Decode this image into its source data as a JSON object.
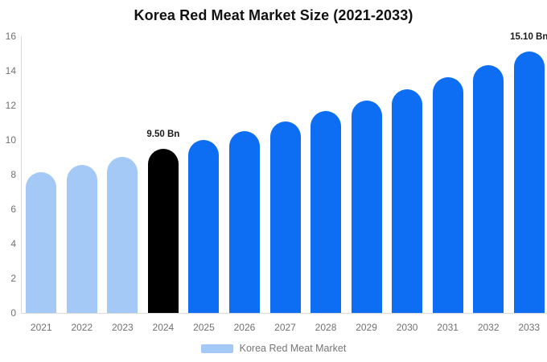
{
  "title": "Korea Red Meat Market Size (2021-2033)",
  "legend": {
    "label": "Korea Red Meat Market",
    "swatch_color": "#a5c9f7"
  },
  "colors": {
    "historical_bar": "#a5c9f7",
    "highlight_bar": "#000000",
    "forecast_bar": "#0d6ef4",
    "axis_line": "#d9d9d9",
    "tick_text": "#707070",
    "data_label_text": "#1a1a1a",
    "title_text": "#111111",
    "background": "#ffffff"
  },
  "chart_data": {
    "type": "bar",
    "title": "Korea Red Meat Market Size (2021-2033)",
    "unit": "Bn",
    "categories": [
      "2021",
      "2022",
      "2023",
      "2024",
      "2025",
      "2026",
      "2027",
      "2028",
      "2029",
      "2030",
      "2031",
      "2032",
      "2033"
    ],
    "values": [
      8.14,
      8.57,
      9.02,
      9.5,
      10.0,
      10.53,
      11.09,
      11.67,
      12.29,
      12.94,
      13.62,
      14.34,
      15.1
    ],
    "bar_colors": [
      "#a5c9f7",
      "#a5c9f7",
      "#a5c9f7",
      "#000000",
      "#0d6ef4",
      "#0d6ef4",
      "#0d6ef4",
      "#0d6ef4",
      "#0d6ef4",
      "#0d6ef4",
      "#0d6ef4",
      "#0d6ef4",
      "#0d6ef4"
    ],
    "data_labels": [
      {
        "category": "2024",
        "text": "9.50 Bn"
      },
      {
        "category": "2033",
        "text": "15.10 Bn"
      }
    ],
    "xlabel": "",
    "ylabel": "",
    "ylim": [
      0,
      16
    ],
    "yticks": [
      0,
      2,
      4,
      6,
      8,
      10,
      12,
      14,
      16
    ],
    "grid": false,
    "legend_position": "bottom",
    "legend_entries": [
      "Korea Red Meat Market"
    ]
  }
}
